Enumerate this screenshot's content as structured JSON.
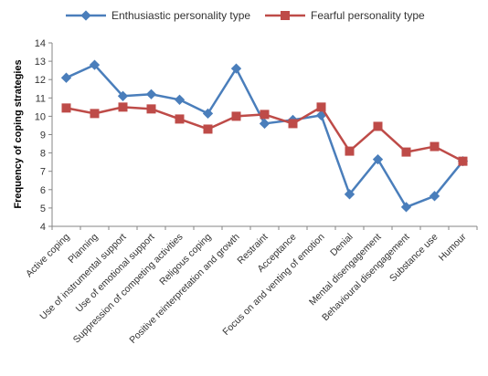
{
  "chart_data": {
    "type": "line",
    "title": "",
    "xlabel": "",
    "ylabel": "Frequency of coping strategies",
    "ylim": [
      4,
      14
    ],
    "yticks": [
      4,
      5,
      6,
      7,
      8,
      9,
      10,
      11,
      12,
      13,
      14
    ],
    "grid": false,
    "legend_position": "top",
    "categories": [
      "Active coping",
      "Planning",
      "Use of instrumental support",
      "Use of emotional support",
      "Suppression of competing activities",
      "Religous coping",
      "Positive reinterpretation and growth",
      "Restraint",
      "Acceptance",
      "Focus on and venting of emotion",
      "Denial",
      "Mental disengagement",
      "Behavioural disengagement",
      "Substance use",
      "Humour"
    ],
    "series": [
      {
        "name": "Enthusiastic personality type",
        "color": "#4A7EBB",
        "marker": "diamond",
        "values": [
          12.1,
          12.8,
          11.1,
          11.2,
          10.9,
          10.15,
          12.6,
          9.6,
          9.8,
          10.05,
          5.75,
          7.65,
          5.05,
          5.65,
          7.55
        ]
      },
      {
        "name": "Fearful personality type",
        "color": "#BE4B48",
        "marker": "square",
        "values": [
          10.45,
          10.15,
          10.5,
          10.4,
          9.85,
          9.3,
          10.0,
          10.1,
          9.6,
          10.5,
          8.1,
          9.45,
          8.05,
          8.35,
          7.55
        ]
      }
    ]
  }
}
